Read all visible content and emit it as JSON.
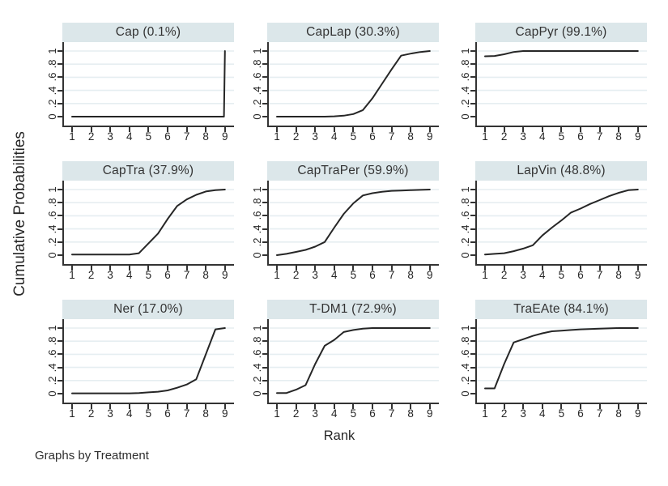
{
  "chart_data": {
    "type": "line",
    "layout": "3x3-small-multiples",
    "title": "",
    "xlabel": "Rank",
    "ylabel": "Cumulative Probabilities",
    "caption": "Graphs by Treatment",
    "x_ticks": [
      1,
      2,
      3,
      4,
      5,
      6,
      7,
      8,
      9
    ],
    "y_ticks": [
      0,
      0.2,
      0.4,
      0.6,
      0.8,
      1
    ],
    "y_tick_labels": [
      "0",
      ".2",
      ".4",
      ".6",
      ".8",
      "1"
    ],
    "xlim": [
      1,
      9
    ],
    "ylim": [
      0,
      1
    ],
    "grid": "light horizontal gridlines at labeled y ticks",
    "legend": "none",
    "colors": {
      "panel_title_bg": "#dce7ea",
      "gridline": "#e6eef1",
      "line": "#262626",
      "axis": "#333333",
      "text": "#2e2e2e"
    },
    "panels": [
      {
        "title": "Cap (0.1%)",
        "treatment": "Cap",
        "percent": 0.1,
        "points": [
          [
            1,
            0
          ],
          [
            8.95,
            0
          ],
          [
            9,
            1
          ]
        ]
      },
      {
        "title": "CapLap (30.3%)",
        "treatment": "CapLap",
        "percent": 30.3,
        "points": [
          [
            1,
            0
          ],
          [
            3.5,
            0
          ],
          [
            4,
            0.005
          ],
          [
            4.5,
            0.015
          ],
          [
            5,
            0.04
          ],
          [
            5.5,
            0.1
          ],
          [
            6,
            0.28
          ],
          [
            6.5,
            0.5
          ],
          [
            7,
            0.72
          ],
          [
            7.5,
            0.93
          ],
          [
            8,
            0.96
          ],
          [
            8.5,
            0.985
          ],
          [
            9,
            1
          ]
        ]
      },
      {
        "title": "CapPyr (99.1%)",
        "treatment": "CapPyr",
        "percent": 99.1,
        "points": [
          [
            1,
            0.92
          ],
          [
            1.5,
            0.925
          ],
          [
            2,
            0.95
          ],
          [
            2.5,
            0.985
          ],
          [
            3,
            1
          ],
          [
            9,
            1
          ]
        ]
      },
      {
        "title": "CapTra (37.9%)",
        "treatment": "CapTra",
        "percent": 37.9,
        "points": [
          [
            1,
            0.01
          ],
          [
            4,
            0.01
          ],
          [
            4.5,
            0.03
          ],
          [
            5,
            0.18
          ],
          [
            5.5,
            0.33
          ],
          [
            6,
            0.55
          ],
          [
            6.5,
            0.75
          ],
          [
            7,
            0.85
          ],
          [
            7.5,
            0.92
          ],
          [
            8,
            0.97
          ],
          [
            8.5,
            0.99
          ],
          [
            9,
            1
          ]
        ]
      },
      {
        "title": "CapTraPer (59.9%)",
        "treatment": "CapTraPer",
        "percent": 59.9,
        "points": [
          [
            1,
            0
          ],
          [
            1.5,
            0.02
          ],
          [
            2,
            0.05
          ],
          [
            2.5,
            0.08
          ],
          [
            3,
            0.13
          ],
          [
            3.5,
            0.2
          ],
          [
            4,
            0.42
          ],
          [
            4.5,
            0.63
          ],
          [
            5,
            0.79
          ],
          [
            5.5,
            0.91
          ],
          [
            6,
            0.945
          ],
          [
            6.5,
            0.965
          ],
          [
            7,
            0.98
          ],
          [
            7.5,
            0.985
          ],
          [
            8,
            0.99
          ],
          [
            8.5,
            0.995
          ],
          [
            9,
            1
          ]
        ]
      },
      {
        "title": "LapVin (48.8%)",
        "treatment": "LapVin",
        "percent": 48.8,
        "points": [
          [
            1,
            0.01
          ],
          [
            1.5,
            0.02
          ],
          [
            2,
            0.03
          ],
          [
            2.5,
            0.06
          ],
          [
            3,
            0.1
          ],
          [
            3.5,
            0.15
          ],
          [
            4,
            0.3
          ],
          [
            4.5,
            0.42
          ],
          [
            5,
            0.53
          ],
          [
            5.5,
            0.65
          ],
          [
            6,
            0.71
          ],
          [
            6.5,
            0.78
          ],
          [
            7,
            0.84
          ],
          [
            7.5,
            0.9
          ],
          [
            8,
            0.95
          ],
          [
            8.5,
            0.99
          ],
          [
            9,
            1
          ]
        ]
      },
      {
        "title": "Ner (17.0%)",
        "treatment": "Ner",
        "percent": 17.0,
        "points": [
          [
            1,
            0.005
          ],
          [
            4,
            0.005
          ],
          [
            4.5,
            0.01
          ],
          [
            5,
            0.02
          ],
          [
            5.5,
            0.03
          ],
          [
            6,
            0.05
          ],
          [
            6.5,
            0.09
          ],
          [
            7,
            0.14
          ],
          [
            7.5,
            0.22
          ],
          [
            8,
            0.6
          ],
          [
            8.5,
            0.98
          ],
          [
            9,
            1
          ]
        ]
      },
      {
        "title": "T-DM1 (72.9%)",
        "treatment": "T-DM1",
        "percent": 72.9,
        "points": [
          [
            1,
            0.01
          ],
          [
            1.5,
            0.01
          ],
          [
            2,
            0.06
          ],
          [
            2.5,
            0.13
          ],
          [
            3,
            0.45
          ],
          [
            3.5,
            0.73
          ],
          [
            4,
            0.82
          ],
          [
            4.5,
            0.94
          ],
          [
            5,
            0.97
          ],
          [
            5.5,
            0.99
          ],
          [
            6,
            1
          ],
          [
            9,
            1
          ]
        ]
      },
      {
        "title": "TraEAte (84.1%)",
        "treatment": "TraEAte",
        "percent": 84.1,
        "points": [
          [
            1,
            0.08
          ],
          [
            1.5,
            0.08
          ],
          [
            2,
            0.45
          ],
          [
            2.5,
            0.78
          ],
          [
            3,
            0.83
          ],
          [
            3.5,
            0.88
          ],
          [
            4,
            0.92
          ],
          [
            4.5,
            0.95
          ],
          [
            5,
            0.96
          ],
          [
            5.5,
            0.97
          ],
          [
            6,
            0.98
          ],
          [
            7,
            0.99
          ],
          [
            8,
            1
          ],
          [
            9,
            1
          ]
        ]
      }
    ]
  }
}
